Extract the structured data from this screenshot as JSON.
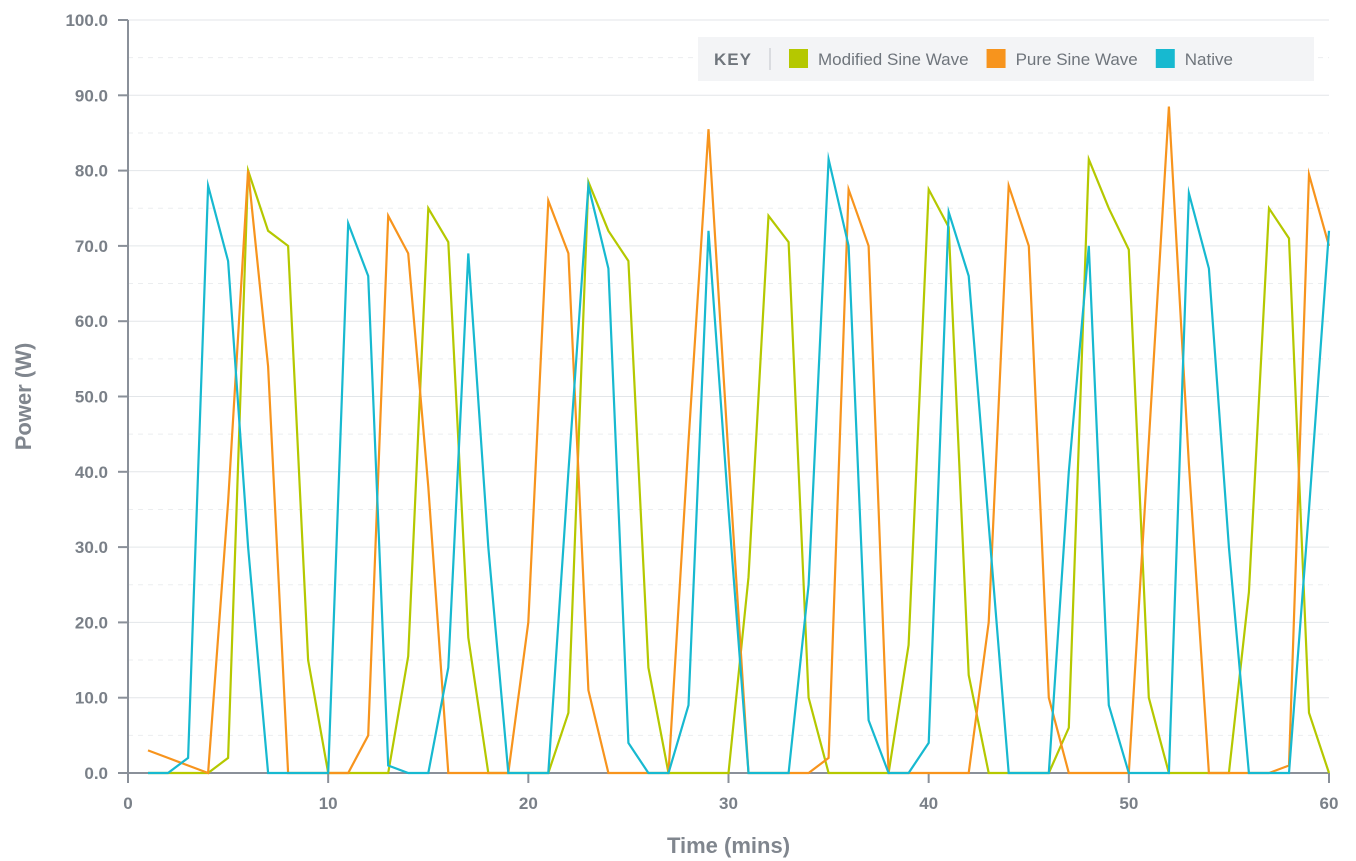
{
  "chart_data": {
    "type": "line",
    "xlabel": "Time (mins)",
    "ylabel": "Power (W)",
    "xlim": [
      0,
      60
    ],
    "ylim": [
      0,
      100
    ],
    "x_ticks": [
      "0",
      "10",
      "20",
      "30",
      "40",
      "50",
      "60"
    ],
    "y_ticks": [
      "0.0",
      "10.0",
      "20.0",
      "30.0",
      "40.0",
      "50.0",
      "60.0",
      "70.0",
      "80.0",
      "90.0",
      "100.0"
    ],
    "grid": true,
    "legend": {
      "title": "KEY",
      "placement": "top-right"
    },
    "x": [
      1,
      2,
      3,
      4,
      5,
      6,
      7,
      8,
      9,
      10,
      11,
      12,
      13,
      14,
      15,
      16,
      17,
      18,
      19,
      20,
      21,
      22,
      23,
      24,
      25,
      26,
      27,
      28,
      29,
      30,
      31,
      32,
      33,
      34,
      35,
      36,
      37,
      38,
      39,
      40,
      41,
      42,
      43,
      44,
      45,
      46,
      47,
      48,
      49,
      50,
      51,
      52,
      53,
      54,
      55,
      56,
      57,
      58,
      59,
      60
    ],
    "series": [
      {
        "name": "Modified Sine Wave",
        "color": "#b5c800",
        "values": [
          0,
          0,
          0,
          0,
          2,
          80,
          72,
          70,
          15,
          0,
          0,
          0,
          0,
          15.5,
          75,
          70.5,
          18,
          0,
          0,
          0,
          0,
          8,
          78.5,
          72,
          68,
          14,
          0,
          0,
          0,
          0,
          26,
          74,
          70.5,
          10,
          0,
          0,
          0,
          0,
          17,
          77.5,
          72.5,
          13,
          0,
          0,
          0,
          0,
          6,
          81.5,
          75,
          69.5,
          10,
          0,
          0,
          0,
          0,
          24,
          75,
          71,
          8,
          0
        ]
      },
      {
        "name": "Pure Sine Wave",
        "color": "#f7941d",
        "values": [
          3,
          2,
          1,
          0,
          36,
          80,
          54,
          0,
          0,
          0,
          0,
          5,
          74,
          69,
          38,
          0,
          0,
          0,
          0,
          20,
          76,
          69,
          11,
          0,
          0,
          0,
          0,
          44,
          85.5,
          42,
          0,
          0,
          0,
          0,
          2,
          77.5,
          70,
          0,
          0,
          0,
          0,
          0,
          20,
          78,
          70,
          10,
          0,
          0,
          0,
          0,
          44,
          88.5,
          41,
          0,
          0,
          0,
          0,
          1,
          79.5,
          70
        ]
      },
      {
        "name": "Native",
        "color": "#17b9d0",
        "values": [
          0,
          0,
          2,
          78,
          68,
          30,
          0,
          0,
          0,
          0,
          73,
          66,
          1,
          0,
          0,
          14,
          69,
          30,
          0,
          0,
          0,
          40,
          78,
          67,
          4,
          0,
          0,
          9,
          72,
          35,
          0,
          0,
          0,
          25,
          81.5,
          70,
          7,
          0,
          0,
          4,
          74.5,
          66,
          33,
          0,
          0,
          0,
          40,
          70,
          9,
          0,
          0,
          0,
          77,
          67,
          30,
          0,
          0,
          0,
          35,
          72
        ]
      }
    ]
  }
}
